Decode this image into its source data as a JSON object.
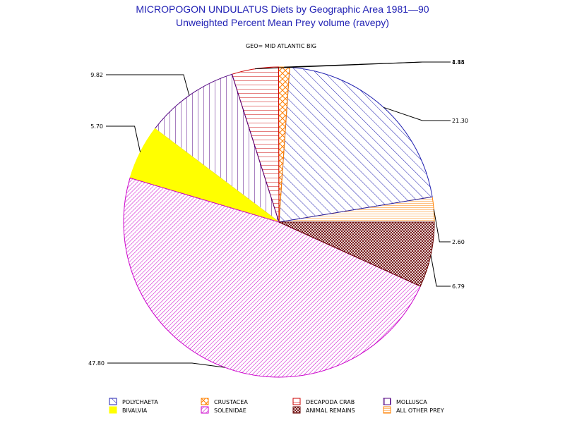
{
  "chart_data": {
    "type": "pie",
    "title": "MICROPOGON UNDULATUS Diets by Geographic Area 1981—90",
    "subtitle": "Unweighted Percent Mean Prey volume (ravepy)",
    "group_label": "GEO= MID ATLANTIC BIG",
    "start_angle_deg": 0,
    "direction": "counterclockwise",
    "slices": [
      {
        "name": "ALL OTHER PREY",
        "value": 2.6,
        "label": "2.60",
        "color": "#ff8000",
        "pattern": "hlines"
      },
      {
        "name": "POLYCHAETA",
        "value": 21.3,
        "label": "21.30",
        "color": "#2020b0",
        "pattern": "diag"
      },
      {
        "name": "CRUSTACEA",
        "value": 1.14,
        "label": "1.14",
        "color": "#ff8000",
        "pattern": "cross-open"
      },
      {
        "name": "DECAPODA CRAB",
        "value": 4.85,
        "label": "4.85",
        "color": "#cc0000",
        "pattern": "hlines"
      },
      {
        "name": "MOLLUSCA",
        "value": 9.82,
        "label": "9.82",
        "color": "#500080",
        "pattern": "vlines"
      },
      {
        "name": "BIVALVIA",
        "value": 5.7,
        "label": "5.70",
        "color": "#ffff00",
        "pattern": "solid"
      },
      {
        "name": "SOLENIDAE",
        "value": 47.8,
        "label": "47.80",
        "color": "#cc00cc",
        "pattern": "diag-dense"
      },
      {
        "name": "ANIMAL REMAINS",
        "value": 6.79,
        "label": "6.79",
        "color": "#660000",
        "pattern": "crosshatch"
      }
    ],
    "legend": [
      {
        "name": "POLYCHAETA",
        "color": "#2020b0",
        "pattern": "diag"
      },
      {
        "name": "CRUSTACEA",
        "color": "#ff8000",
        "pattern": "cross-open"
      },
      {
        "name": "DECAPODA CRAB",
        "color": "#cc0000",
        "pattern": "hlines"
      },
      {
        "name": "MOLLUSCA",
        "color": "#500080",
        "pattern": "vlines"
      },
      {
        "name": "BIVALVIA",
        "color": "#ffff00",
        "pattern": "solid"
      },
      {
        "name": "SOLENIDAE",
        "color": "#cc00cc",
        "pattern": "diag-dense"
      },
      {
        "name": "ANIMAL REMAINS",
        "color": "#660000",
        "pattern": "crosshatch"
      },
      {
        "name": "ALL OTHER PREY",
        "color": "#ff8000",
        "pattern": "hlines"
      }
    ],
    "legend_placement": "bottom"
  }
}
